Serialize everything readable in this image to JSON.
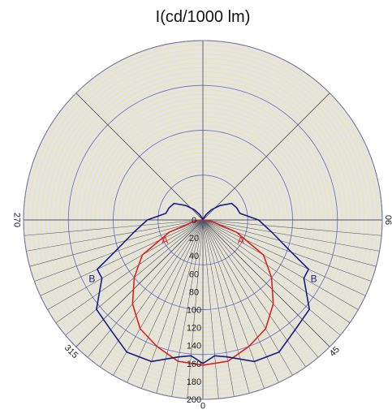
{
  "chart_data": {
    "type": "polar",
    "title": "I(cd/1000 lm)",
    "r_range": [
      0,
      200
    ],
    "r_ticks": [
      0,
      20,
      40,
      60,
      80,
      100,
      120,
      140,
      160,
      180,
      200
    ],
    "r_tick_labels": [
      "0",
      "20",
      "40",
      "60",
      "80",
      "100",
      "120",
      "140",
      "160",
      "180",
      "200"
    ],
    "angle_tick_labels": [
      {
        "angle": 0,
        "label": "0"
      },
      {
        "angle": 45,
        "label": "45"
      },
      {
        "angle": 90,
        "label": "90"
      },
      {
        "angle": 270,
        "label": "270"
      },
      {
        "angle": 315,
        "label": "315"
      }
    ],
    "grid": true,
    "colors": {
      "background": "#e4e4e4",
      "minor_grid": "#f0e87a",
      "major_grid": "#7a7a8c",
      "spoke": "#555566",
      "series_A": "#e02020",
      "series_B": "#1a1a8a"
    },
    "series": [
      {
        "name": "A",
        "color": "#e02020",
        "angles": [
          0,
          10,
          20,
          30,
          40,
          50,
          60,
          70,
          80,
          90
        ],
        "values": [
          162,
          160,
          150,
          140,
          122,
          100,
          78,
          40,
          10,
          2
        ]
      },
      {
        "name": "B",
        "color": "#1a1a8a",
        "angles": [
          0,
          5,
          10,
          20,
          30,
          40,
          50,
          60,
          65,
          70,
          80,
          90,
          100,
          110,
          120,
          130,
          140,
          150,
          160,
          170,
          180
        ],
        "values": [
          160,
          152,
          155,
          168,
          170,
          160,
          155,
          130,
          130,
          105,
          78,
          62,
          42,
          40,
          37,
          25,
          15,
          7,
          2,
          1,
          0
        ]
      }
    ]
  }
}
